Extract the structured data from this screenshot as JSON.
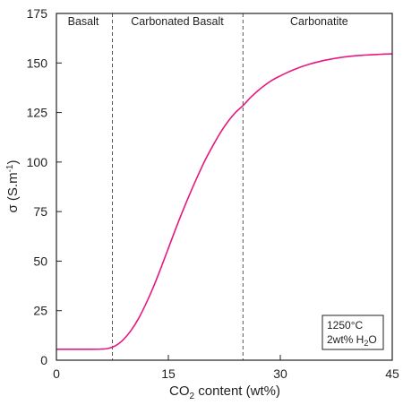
{
  "chart_data": {
    "type": "line",
    "xlabel_main": "CO",
    "xlabel_sub": "2",
    "xlabel_rest": " content  (wt%)",
    "ylabel_main": "σ (S.m",
    "ylabel_sup": "-1",
    "ylabel_rest": ")",
    "xlim": [
      0,
      45
    ],
    "ylim": [
      0,
      175
    ],
    "x_ticks": [
      0,
      15,
      30,
      45
    ],
    "x_tick_labels": [
      "0",
      "15",
      "30",
      "45"
    ],
    "y_ticks": [
      0,
      25,
      50,
      75,
      100,
      125,
      150,
      175
    ],
    "y_tick_labels": [
      "0",
      "25",
      "50",
      "75",
      "100",
      "125",
      "150",
      "175"
    ],
    "grid": false,
    "boundaries": [
      7.5,
      25
    ],
    "regions": [
      {
        "label": "Basalt",
        "center": 3.6
      },
      {
        "label": "Carbonated Basalt",
        "center": 16.2
      },
      {
        "label": "Carbonatite",
        "center": 35.2
      }
    ],
    "annotation": {
      "line1": "1250°C",
      "line2_main": "2wt% H",
      "line2_sub": "2",
      "line2_rest": "O"
    },
    "series": [
      {
        "color": "#e6197f",
        "x": [
          0,
          2,
          4,
          6,
          7,
          8,
          9,
          10,
          11,
          12,
          13,
          14,
          15,
          16,
          17,
          18,
          19,
          20,
          21,
          22,
          23,
          24,
          25,
          26,
          27,
          28,
          29,
          30,
          31,
          32,
          33,
          34,
          35,
          36,
          37,
          38,
          39,
          40,
          41,
          42,
          43,
          44,
          45
        ],
        "y": [
          5.5,
          5.5,
          5.5,
          5.6,
          6.0,
          7.5,
          10.5,
          15.0,
          21.0,
          28.5,
          37.0,
          46.5,
          56.5,
          66.5,
          76.0,
          85.0,
          93.5,
          101.5,
          108.5,
          115.0,
          120.5,
          125.0,
          128.5,
          132.5,
          136.0,
          139.0,
          141.5,
          143.5,
          145.3,
          146.9,
          148.3,
          149.5,
          150.5,
          151.4,
          152.1,
          152.7,
          153.2,
          153.6,
          153.9,
          154.1,
          154.3,
          154.5,
          154.6
        ]
      }
    ]
  }
}
